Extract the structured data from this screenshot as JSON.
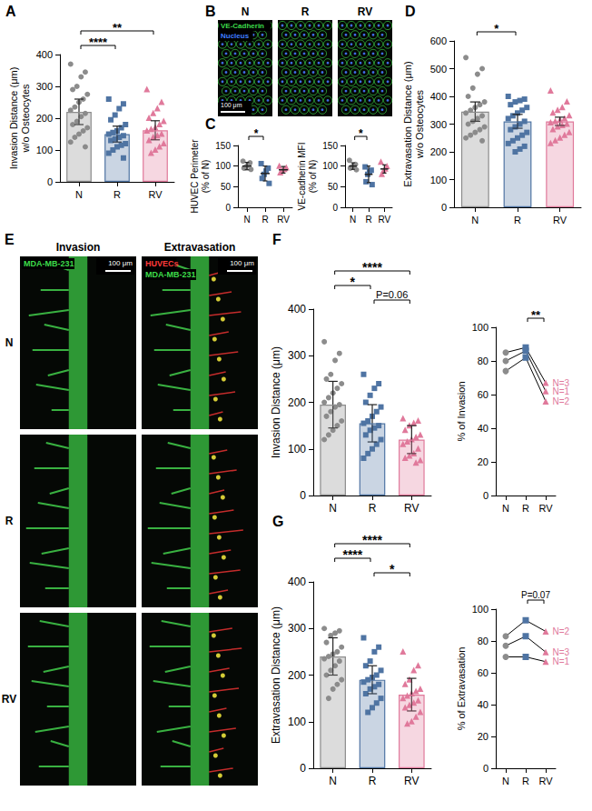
{
  "chart_data": [
    {
      "panel": "A",
      "type": "bar",
      "categories": [
        "N",
        "R",
        "RV"
      ],
      "colors": [
        "#8c8c8c",
        "#4f74a3",
        "#e0799b"
      ],
      "markers": [
        "circle",
        "square",
        "triangle"
      ],
      "values": [
        220,
        150,
        162
      ],
      "errors": [
        40,
        25,
        30
      ],
      "points": [
        [
          370,
          345,
          330,
          300,
          290,
          275,
          260,
          250,
          235,
          225,
          215,
          205,
          190,
          180,
          170,
          160,
          150,
          140,
          125,
          110
        ],
        [
          260,
          245,
          230,
          210,
          195,
          180,
          170,
          160,
          155,
          150,
          145,
          140,
          135,
          130,
          120,
          115,
          110,
          100,
          90,
          75
        ],
        [
          290,
          250,
          230,
          215,
          200,
          190,
          180,
          170,
          165,
          160,
          150,
          145,
          140,
          130,
          120,
          110,
          100,
          90
        ]
      ],
      "ylabel": [
        "Invasion Distance (μm)",
        "w/o Osteocytes"
      ],
      "ylim": [
        0,
        400
      ],
      "yticks": [
        0,
        100,
        200,
        300,
        400
      ],
      "grid": false,
      "significance": [
        {
          "from": "N",
          "to": "R",
          "label": "****"
        },
        {
          "from": "N",
          "to": "RV",
          "label": "**"
        }
      ]
    },
    {
      "panel": "C",
      "type": "scatter",
      "categories": [
        "N",
        "R",
        "RV"
      ],
      "colors": [
        "#8c8c8c",
        "#4f74a3",
        "#e0799b"
      ],
      "markers": [
        "circle",
        "square",
        "triangle"
      ],
      "values": [
        100,
        82,
        91
      ],
      "errors": [
        9,
        18,
        8
      ],
      "points": [
        [
          112,
          108,
          103,
          98,
          95,
          92
        ],
        [
          106,
          95,
          88,
          80,
          70,
          58
        ],
        [
          100,
          96,
          92,
          88,
          84
        ]
      ],
      "ylabel": [
        "HUVEC Perimeter",
        "(% of N)"
      ],
      "ylim": [
        0,
        150
      ],
      "yticks": [
        0,
        50,
        100,
        150
      ],
      "grid": false,
      "significance": [
        {
          "from": "N",
          "to": "R",
          "label": "*"
        }
      ]
    },
    {
      "type": "scatter",
      "categories": [
        "N",
        "R",
        "RV"
      ],
      "colors": [
        "#8c8c8c",
        "#4f74a3",
        "#e0799b"
      ],
      "markers": [
        "circle",
        "square",
        "triangle"
      ],
      "values": [
        100,
        80,
        93
      ],
      "errors": [
        8,
        20,
        10
      ],
      "points": [
        [
          114,
          104,
          101,
          98,
          95,
          91
        ],
        [
          98,
          90,
          86,
          80,
          62,
          55
        ],
        [
          110,
          99,
          93,
          88,
          80
        ]
      ],
      "ylabel": [
        "VE-cadherin MFI",
        "(% of N)"
      ],
      "ylim": [
        0,
        150
      ],
      "yticks": [
        0,
        50,
        100,
        150
      ],
      "grid": false,
      "significance": [
        {
          "from": "N",
          "to": "R",
          "label": "*"
        }
      ]
    },
    {
      "panel": "D",
      "type": "bar",
      "categories": [
        "N",
        "R",
        "RV"
      ],
      "colors": [
        "#8c8c8c",
        "#4f74a3",
        "#e0799b"
      ],
      "markers": [
        "circle",
        "square",
        "triangle"
      ],
      "values": [
        345,
        310,
        310
      ],
      "errors": [
        35,
        25,
        15
      ],
      "points": [
        [
          540,
          500,
          480,
          430,
          400,
          380,
          370,
          360,
          350,
          340,
          330,
          320,
          310,
          300,
          290,
          280,
          270,
          260,
          250,
          240
        ],
        [
          400,
          390,
          385,
          380,
          370,
          360,
          350,
          340,
          330,
          320,
          310,
          300,
          290,
          280,
          270,
          260,
          250,
          240,
          230,
          220,
          210,
          200
        ],
        [
          420,
          380,
          360,
          350,
          340,
          330,
          320,
          315,
          310,
          305,
          300,
          295,
          290,
          280,
          270,
          260,
          250,
          240,
          230
        ]
      ],
      "ylabel": [
        "Extravasation Distance (μm)",
        "w/o Osteocytes"
      ],
      "ylim": [
        0,
        600
      ],
      "yticks": [
        0,
        100,
        200,
        300,
        400,
        500,
        600
      ],
      "grid": false,
      "significance": [
        {
          "from": "N",
          "to": "R",
          "label": "*"
        }
      ]
    },
    {
      "panel": "F",
      "type": "bar",
      "categories": [
        "N",
        "R",
        "RV"
      ],
      "colors": [
        "#8c8c8c",
        "#4f74a3",
        "#e0799b"
      ],
      "markers": [
        "circle",
        "square",
        "triangle"
      ],
      "values": [
        195,
        155,
        120
      ],
      "errors": [
        50,
        40,
        30
      ],
      "points": [
        [
          330,
          305,
          290,
          260,
          250,
          240,
          230,
          220,
          210,
          200,
          195,
          190,
          180,
          170,
          160,
          150,
          140,
          130,
          120
        ],
        [
          260,
          240,
          230,
          215,
          200,
          190,
          180,
          170,
          160,
          155,
          150,
          145,
          140,
          130,
          120,
          110,
          100,
          90,
          80
        ],
        [
          165,
          160,
          155,
          150,
          140,
          130,
          125,
          120,
          115,
          110,
          100,
          90,
          85,
          80,
          75,
          70
        ]
      ],
      "ylabel": [
        "Invasion Distance (μm)"
      ],
      "ylim": [
        0,
        400
      ],
      "yticks": [
        0,
        100,
        200,
        300,
        400
      ],
      "grid": false,
      "significance": [
        {
          "from": "R",
          "to": "RV",
          "label": "P=0.06"
        },
        {
          "from": "N",
          "to": "R",
          "label": "*"
        },
        {
          "from": "N",
          "to": "RV",
          "label": "****"
        }
      ]
    },
    {
      "type": "line",
      "categories": [
        "N",
        "R",
        "RV"
      ],
      "colors": [
        "#8c8c8c",
        "#4f74a3",
        "#e0799b"
      ],
      "markers": [
        "circle",
        "square",
        "triangle"
      ],
      "series": [
        {
          "name": "N=3",
          "color": "#000000",
          "values": [
            85,
            88,
            67
          ]
        },
        {
          "name": "N=1",
          "color": "#000000",
          "values": [
            80,
            86,
            62
          ]
        },
        {
          "name": "N=2",
          "color": "#000000",
          "values": [
            74,
            82,
            56
          ]
        }
      ],
      "ylabel": [
        "% of Invasion"
      ],
      "ylim": [
        0,
        100
      ],
      "yticks": [
        0,
        20,
        40,
        60,
        80,
        100
      ],
      "grid": false,
      "significance": [
        {
          "from": "R",
          "to": "RV",
          "label": "**"
        }
      ]
    },
    {
      "panel": "G",
      "type": "bar",
      "categories": [
        "N",
        "R",
        "RV"
      ],
      "colors": [
        "#8c8c8c",
        "#4f74a3",
        "#e0799b"
      ],
      "markers": [
        "circle",
        "square",
        "triangle"
      ],
      "values": [
        240,
        190,
        158
      ],
      "errors": [
        40,
        30,
        35
      ],
      "points": [
        [
          300,
          295,
          290,
          285,
          270,
          260,
          250,
          245,
          240,
          235,
          230,
          220,
          210,
          200,
          190,
          180,
          170,
          150
        ],
        [
          280,
          260,
          250,
          230,
          220,
          210,
          200,
          195,
          190,
          185,
          180,
          175,
          170,
          160,
          150,
          140,
          130,
          120
        ],
        [
          250,
          220,
          210,
          190,
          180,
          170,
          165,
          160,
          155,
          150,
          145,
          140,
          135,
          130,
          120,
          110,
          100,
          95
        ]
      ],
      "ylabel": [
        "Extravasation Distance (μm)"
      ],
      "ylim": [
        0,
        400
      ],
      "yticks": [
        0,
        100,
        200,
        300,
        400
      ],
      "grid": false,
      "significance": [
        {
          "from": "R",
          "to": "RV",
          "label": "*"
        },
        {
          "from": "N",
          "to": "R",
          "label": "****"
        },
        {
          "from": "N",
          "to": "RV",
          "label": "****"
        }
      ]
    },
    {
      "type": "line",
      "categories": [
        "N",
        "R",
        "RV"
      ],
      "colors": [
        "#8c8c8c",
        "#4f74a3",
        "#e0799b"
      ],
      "markers": [
        "circle",
        "square",
        "triangle"
      ],
      "series": [
        {
          "name": "N=2",
          "color": "#000000",
          "values": [
            83,
            93,
            86
          ]
        },
        {
          "name": "N=3",
          "color": "#000000",
          "values": [
            77,
            83,
            73
          ]
        },
        {
          "name": "N=1",
          "color": "#000000",
          "values": [
            70,
            70,
            67
          ]
        }
      ],
      "ylabel": [
        "% of Extravasation"
      ],
      "ylim": [
        0,
        100
      ],
      "yticks": [
        0,
        20,
        40,
        60,
        80,
        100
      ],
      "grid": false,
      "significance": [
        {
          "from": "R",
          "to": "RV",
          "label": "P=0.07"
        }
      ]
    }
  ],
  "images": [
    {
      "panel": "B",
      "columns": [
        "N",
        "R",
        "RV"
      ],
      "stains": [
        {
          "text": "VE-Cadherin",
          "color": "#3ddc4a"
        },
        {
          "text": "Nucleus",
          "color": "#3f7dff"
        }
      ],
      "scale_bar": "100 μm"
    },
    {
      "panel": "E",
      "columns": [
        "Invasion",
        "Extravasation"
      ],
      "rows": [
        "N",
        "R",
        "RV"
      ],
      "stains": [
        [
          {
            "text": "MDA-MB-231",
            "color": "#3ddc4a"
          }
        ],
        [
          {
            "text": "HUVECs",
            "color": "#ff3b3b"
          },
          {
            "text": "MDA-MB-231",
            "color": "#3ddc4a"
          }
        ]
      ],
      "scale_bar": "100 μm"
    }
  ]
}
